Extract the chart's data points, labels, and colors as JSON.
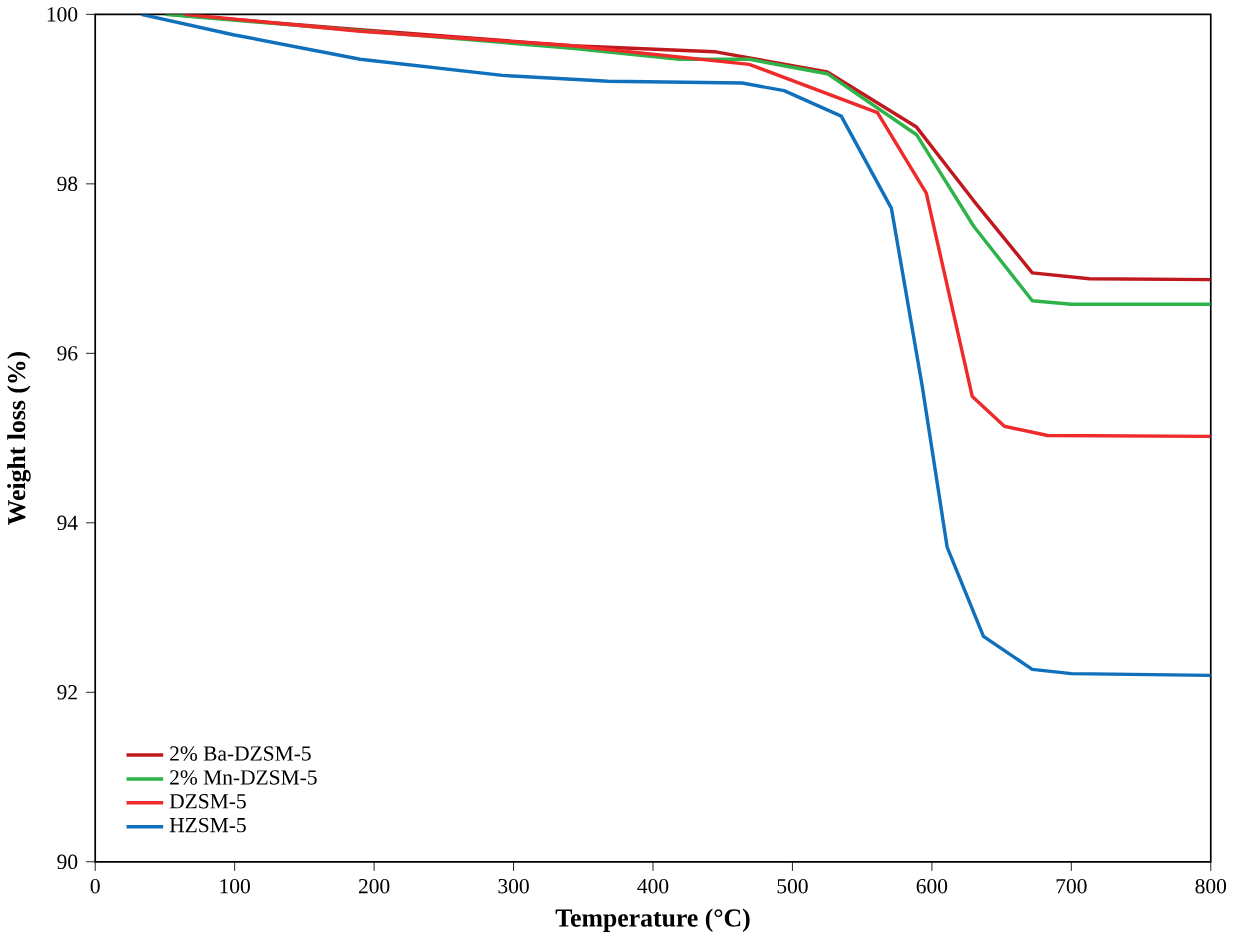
{
  "chart_data": {
    "type": "line",
    "xlabel": "Temperature (°C)",
    "ylabel": "Weight loss (%)",
    "xlim": [
      0,
      800
    ],
    "ylim": [
      90,
      100
    ],
    "xticks": [
      0,
      100,
      200,
      300,
      400,
      500,
      600,
      700,
      800
    ],
    "yticks": [
      90,
      92,
      94,
      96,
      98,
      100
    ],
    "legend": "bottom left",
    "grid": false,
    "marker": "none",
    "line_style": "solid",
    "series": [
      {
        "name": "2% Ba-DZSM-5",
        "color": "#c0181f",
        "x": [
          53,
          190,
          342,
          444,
          525,
          589,
          630,
          672,
          713,
          800
        ],
        "values": [
          100,
          99.82,
          99.63,
          99.56,
          99.32,
          98.67,
          97.8,
          96.95,
          96.88,
          96.87
        ]
      },
      {
        "name": "2% Mn-DZSM-5",
        "color": "#2db34a",
        "x": [
          50,
          342,
          419,
          469,
          525,
          589,
          630,
          672,
          700,
          800
        ],
        "values": [
          100,
          99.6,
          99.47,
          99.47,
          99.3,
          98.58,
          97.5,
          96.62,
          96.58,
          96.58
        ]
      },
      {
        "name": "DZSM-5",
        "color": "#ee2a2a",
        "x": [
          64,
          190,
          342,
          469,
          561,
          596,
          629,
          652,
          683,
          800
        ],
        "values": [
          100,
          99.8,
          99.63,
          99.41,
          98.84,
          97.89,
          95.49,
          95.14,
          95.03,
          95.02
        ]
      },
      {
        "name": "HZSM-5",
        "color": "#1070bb",
        "x": [
          33,
          99,
          190,
          292,
          368,
          464,
          494,
          535,
          571,
          593,
          611,
          637,
          672,
          700,
          800
        ],
        "values": [
          100,
          99.76,
          99.47,
          99.28,
          99.21,
          99.19,
          99.1,
          98.8,
          97.71,
          95.62,
          93.71,
          92.66,
          92.27,
          92.22,
          92.2
        ]
      }
    ]
  }
}
